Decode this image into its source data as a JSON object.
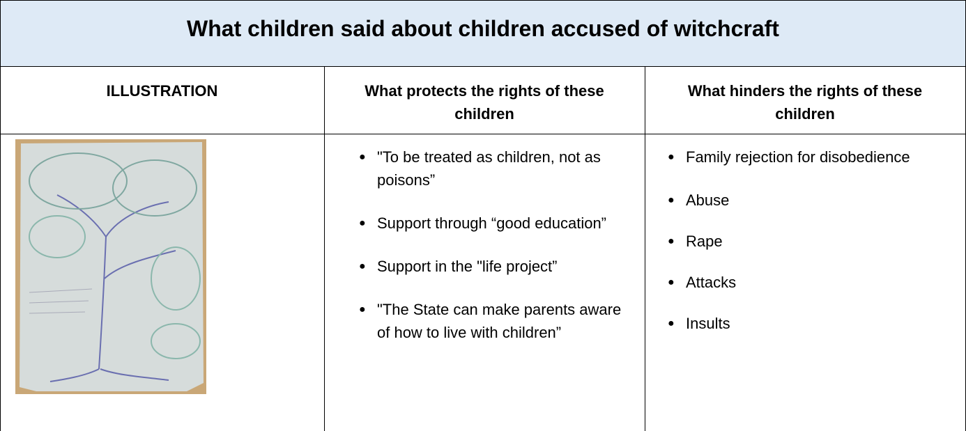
{
  "title": "What children said about children accused of witchcraft",
  "table": {
    "headers": [
      "ILLUSTRATION",
      "What protects the rights of these children",
      "What hinders the rights of these children"
    ],
    "protects": [
      "\"To be treated as children, not as poisons”",
      "Support through “good education”",
      "Support in the \"life project”",
      "\"The State can make parents aware of how to live with children”"
    ],
    "hinders": [
      "Family rejection for disobedience",
      "Abuse",
      "Rape",
      "Attacks",
      "Insults"
    ]
  }
}
